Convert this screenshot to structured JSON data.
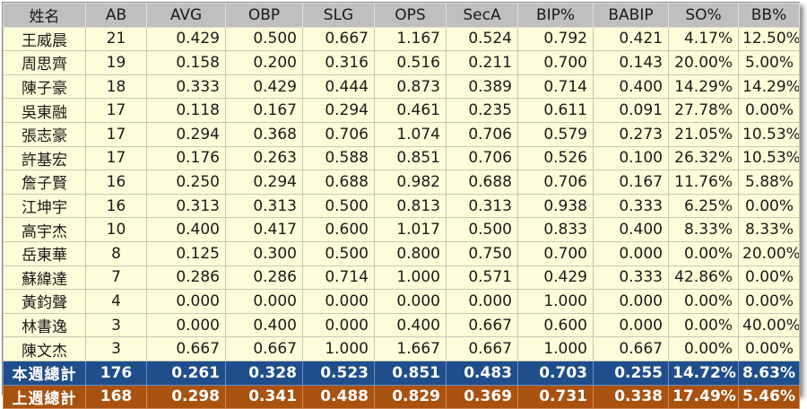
{
  "table": {
    "headers": [
      "姓名",
      "AB",
      "AVG",
      "OBP",
      "SLG",
      "OPS",
      "SecA",
      "BIP%",
      "BABIP",
      "SO%",
      "BB%"
    ],
    "rows": [
      [
        "王威晨",
        "21",
        "0.429",
        "0.500",
        "0.667",
        "1.167",
        "0.524",
        "0.792",
        "0.421",
        "4.17%",
        "12.50%"
      ],
      [
        "周思齊",
        "19",
        "0.158",
        "0.200",
        "0.316",
        "0.516",
        "0.211",
        "0.700",
        "0.143",
        "20.00%",
        "5.00%"
      ],
      [
        "陳子豪",
        "18",
        "0.333",
        "0.429",
        "0.444",
        "0.873",
        "0.389",
        "0.714",
        "0.400",
        "14.29%",
        "14.29%"
      ],
      [
        "吳東融",
        "17",
        "0.118",
        "0.167",
        "0.294",
        "0.461",
        "0.235",
        "0.611",
        "0.091",
        "27.78%",
        "0.00%"
      ],
      [
        "張志豪",
        "17",
        "0.294",
        "0.368",
        "0.706",
        "1.074",
        "0.706",
        "0.579",
        "0.273",
        "21.05%",
        "10.53%"
      ],
      [
        "許基宏",
        "17",
        "0.176",
        "0.263",
        "0.588",
        "0.851",
        "0.706",
        "0.526",
        "0.100",
        "26.32%",
        "10.53%"
      ],
      [
        "詹子賢",
        "16",
        "0.250",
        "0.294",
        "0.688",
        "0.982",
        "0.688",
        "0.706",
        "0.167",
        "11.76%",
        "5.88%"
      ],
      [
        "江坤宇",
        "16",
        "0.313",
        "0.313",
        "0.500",
        "0.813",
        "0.313",
        "0.938",
        "0.333",
        "6.25%",
        "0.00%"
      ],
      [
        "高宇杰",
        "10",
        "0.400",
        "0.417",
        "0.600",
        "1.017",
        "0.500",
        "0.833",
        "0.400",
        "8.33%",
        "8.33%"
      ],
      [
        "岳東華",
        "8",
        "0.125",
        "0.300",
        "0.500",
        "0.800",
        "0.750",
        "0.700",
        "0.000",
        "0.00%",
        "20.00%"
      ],
      [
        "蘇緯達",
        "7",
        "0.286",
        "0.286",
        "0.714",
        "1.000",
        "0.571",
        "0.429",
        "0.333",
        "42.86%",
        "0.00%"
      ],
      [
        "黃鈞聲",
        "4",
        "0.000",
        "0.000",
        "0.000",
        "0.000",
        "0.000",
        "1.000",
        "0.000",
        "0.00%",
        "0.00%"
      ],
      [
        "林書逸",
        "3",
        "0.000",
        "0.400",
        "0.000",
        "0.400",
        "0.667",
        "0.600",
        "0.000",
        "0.00%",
        "40.00%"
      ],
      [
        "陳文杰",
        "3",
        "0.667",
        "0.667",
        "1.000",
        "1.667",
        "0.667",
        "1.000",
        "0.667",
        "0.00%",
        "0.00%"
      ]
    ],
    "totals": [
      {
        "kind": "this-week",
        "cells": [
          "本週總計",
          "176",
          "0.261",
          "0.328",
          "0.523",
          "0.851",
          "0.483",
          "0.703",
          "0.255",
          "14.72%",
          "8.63%"
        ]
      },
      {
        "kind": "last-week",
        "cells": [
          "上週總計",
          "168",
          "0.298",
          "0.341",
          "0.488",
          "0.829",
          "0.369",
          "0.731",
          "0.338",
          "17.49%",
          "5.46%"
        ]
      }
    ]
  },
  "colors": {
    "header_bg": "#bfbfbf",
    "row_bg": "#fdfdd9",
    "this_week_bg": "#1f4e8c",
    "last_week_bg": "#a9520f"
  }
}
